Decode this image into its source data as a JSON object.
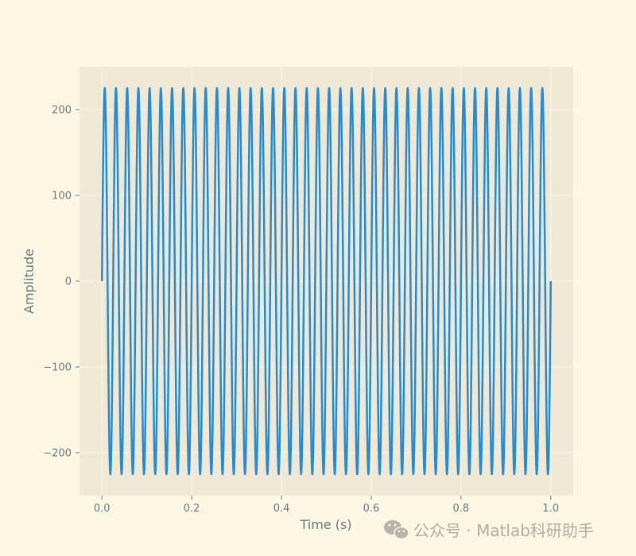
{
  "chart_data": {
    "type": "line",
    "xlabel": "Time (s)",
    "ylabel": "Amplitude",
    "xlim": [
      -0.05,
      1.05
    ],
    "ylim": [
      -250,
      250
    ],
    "xticks": [
      0.0,
      0.2,
      0.4,
      0.6,
      0.8,
      1.0
    ],
    "xtick_labels": [
      "0.0",
      "0.2",
      "0.4",
      "0.6",
      "0.8",
      "1.0"
    ],
    "yticks": [
      -200,
      -100,
      0,
      100,
      200
    ],
    "ytick_labels": [
      "−200",
      "−100",
      "0",
      "100",
      "200"
    ],
    "grid": true,
    "series": [
      {
        "signal": "sine",
        "amplitude": 225,
        "frequency_hz": 40,
        "t_start": 0.0,
        "t_end": 1.0,
        "color": "#268bd2"
      }
    ]
  },
  "colors": {
    "figure_background": "#fdf6e3",
    "axes_background": "#eee8d5",
    "grid": "#fdf6e3",
    "text": "#657b83",
    "line": "#268bd2"
  },
  "watermark": {
    "text": "公众号 · Matlab科研助手",
    "icon": "wechat-icon"
  }
}
